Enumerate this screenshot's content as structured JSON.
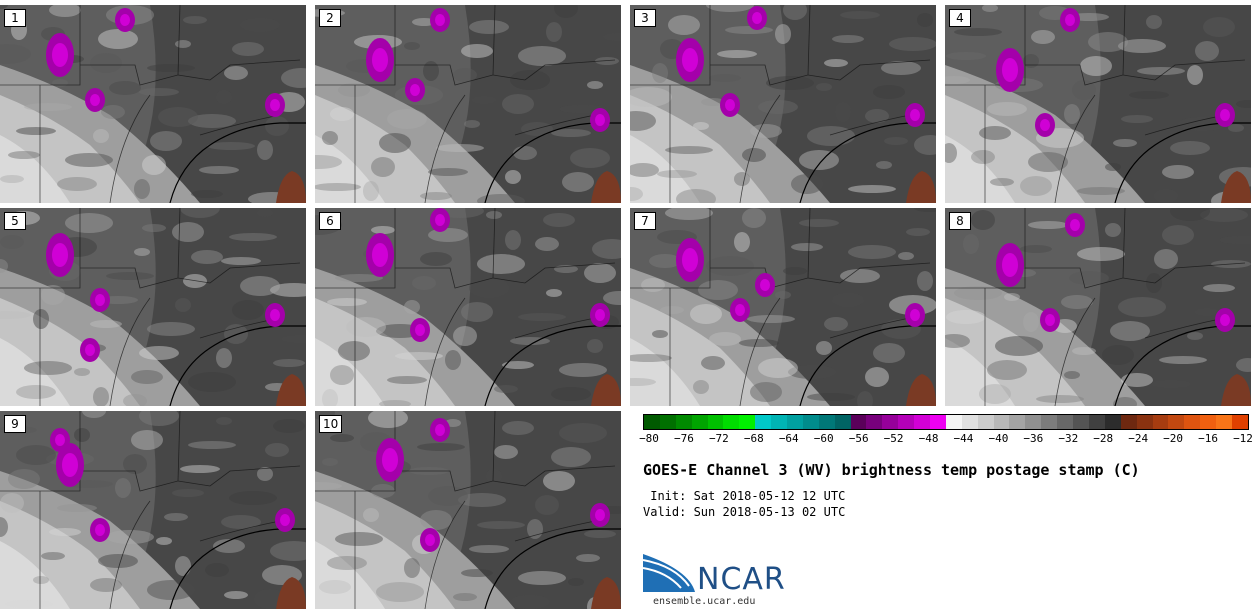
{
  "panels": [
    {
      "label": "1"
    },
    {
      "label": "2"
    },
    {
      "label": "3"
    },
    {
      "label": "4"
    },
    {
      "label": "5"
    },
    {
      "label": "6"
    },
    {
      "label": "7"
    },
    {
      "label": "8"
    },
    {
      "label": "9"
    },
    {
      "label": "10"
    }
  ],
  "colorbar": {
    "ticks": [
      "−80",
      "−76",
      "−72",
      "−68",
      "−64",
      "−60",
      "−56",
      "−52",
      "−48",
      "−44",
      "−40",
      "−36",
      "−32",
      "−28",
      "−24",
      "−20",
      "−16",
      "−12"
    ],
    "colors": [
      "#005a00",
      "#007000",
      "#008a00",
      "#00a400",
      "#00c000",
      "#00dc00",
      "#00f000",
      "#00c8c8",
      "#00b4b4",
      "#00a0a0",
      "#008c8c",
      "#007878",
      "#006464",
      "#5a005a",
      "#78007c",
      "#96009a",
      "#b400b8",
      "#d200d6",
      "#ee00f2",
      "#f4f4f4",
      "#e0e0e0",
      "#cccccc",
      "#b8b8b8",
      "#a4a4a4",
      "#909090",
      "#7c7c7c",
      "#686868",
      "#545454",
      "#404040",
      "#2c2c2c",
      "#6e2810",
      "#8a3210",
      "#a63c10",
      "#c24810",
      "#de5410",
      "#f06010",
      "#f87418",
      "#e04000"
    ]
  },
  "title": "GOES-E Channel 3 (WV) brightness temp postage stamp (C)",
  "init": " Init: Sat 2018-05-12 12 UTC",
  "valid": "Valid: Sun 2018-05-13 02 UTC",
  "logo": {
    "name": "NCAR",
    "url": "ensemble.ucar.edu"
  }
}
